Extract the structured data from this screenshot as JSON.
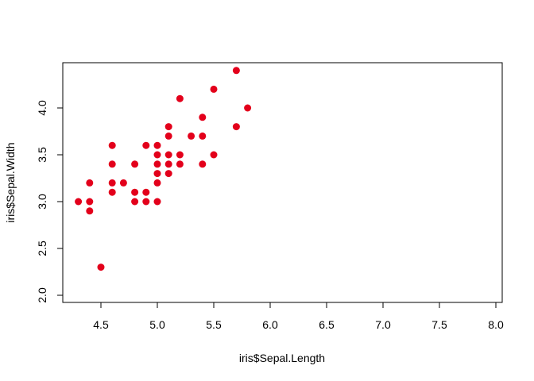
{
  "chart_data": {
    "type": "scatter",
    "title": "",
    "xlabel": "iris$Sepal.Length",
    "ylabel": "iris$Sepal.Width",
    "xlim": [
      4.3,
      8.0
    ],
    "ylim": [
      2.0,
      4.4
    ],
    "xticks": [
      "4.5",
      "5.0",
      "5.5",
      "6.0",
      "6.5",
      "7.0",
      "7.5",
      "8.0"
    ],
    "yticks": [
      "2.0",
      "2.5",
      "3.0",
      "3.5",
      "4.0"
    ],
    "grid": false,
    "legend": "none",
    "point_color": "#E3001B",
    "points": [
      {
        "x": 4.3,
        "y": 3.0
      },
      {
        "x": 4.4,
        "y": 2.9
      },
      {
        "x": 4.4,
        "y": 3.0
      },
      {
        "x": 4.4,
        "y": 3.2
      },
      {
        "x": 4.5,
        "y": 2.3
      },
      {
        "x": 4.6,
        "y": 3.1
      },
      {
        "x": 4.6,
        "y": 3.2
      },
      {
        "x": 4.6,
        "y": 3.4
      },
      {
        "x": 4.6,
        "y": 3.6
      },
      {
        "x": 4.7,
        "y": 3.2
      },
      {
        "x": 4.8,
        "y": 3.0
      },
      {
        "x": 4.8,
        "y": 3.1
      },
      {
        "x": 4.8,
        "y": 3.4
      },
      {
        "x": 4.9,
        "y": 3.0
      },
      {
        "x": 4.9,
        "y": 3.1
      },
      {
        "x": 4.9,
        "y": 3.6
      },
      {
        "x": 5.0,
        "y": 3.0
      },
      {
        "x": 5.0,
        "y": 3.2
      },
      {
        "x": 5.0,
        "y": 3.3
      },
      {
        "x": 5.0,
        "y": 3.4
      },
      {
        "x": 5.0,
        "y": 3.5
      },
      {
        "x": 5.0,
        "y": 3.6
      },
      {
        "x": 5.1,
        "y": 3.3
      },
      {
        "x": 5.1,
        "y": 3.4
      },
      {
        "x": 5.1,
        "y": 3.5
      },
      {
        "x": 5.1,
        "y": 3.7
      },
      {
        "x": 5.1,
        "y": 3.8
      },
      {
        "x": 5.2,
        "y": 3.4
      },
      {
        "x": 5.2,
        "y": 3.5
      },
      {
        "x": 5.2,
        "y": 4.1
      },
      {
        "x": 5.3,
        "y": 3.7
      },
      {
        "x": 5.4,
        "y": 3.4
      },
      {
        "x": 5.4,
        "y": 3.7
      },
      {
        "x": 5.4,
        "y": 3.9
      },
      {
        "x": 5.5,
        "y": 3.5
      },
      {
        "x": 5.5,
        "y": 4.2
      },
      {
        "x": 5.7,
        "y": 3.8
      },
      {
        "x": 5.7,
        "y": 4.4
      },
      {
        "x": 5.8,
        "y": 4.0
      }
    ]
  }
}
